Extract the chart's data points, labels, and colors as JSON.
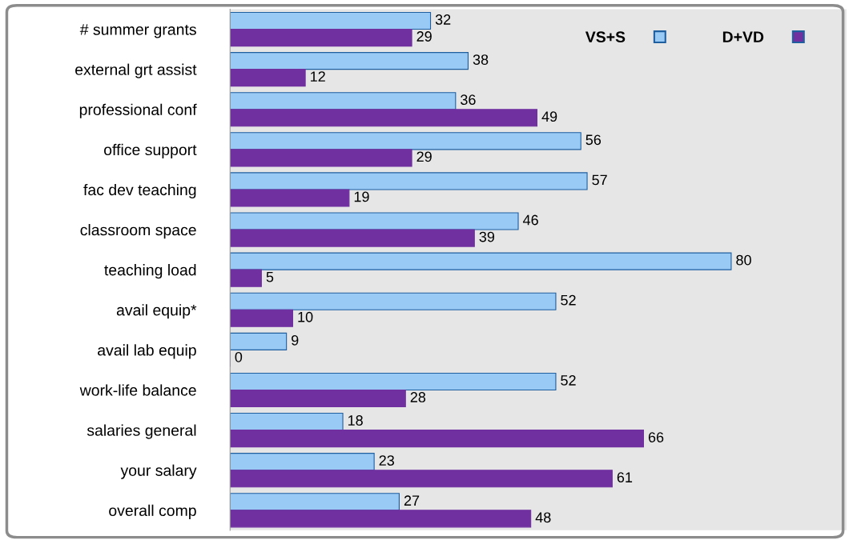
{
  "chart_data": {
    "type": "bar",
    "orientation": "horizontal",
    "data_labels": true,
    "legend": "top right",
    "grid": false,
    "categories": [
      "# summer grants",
      "external grt assist",
      "professional conf",
      "office support",
      "fac dev teaching",
      "classroom space",
      "teaching load",
      "avail equip*",
      "avail lab equip",
      "work-life balance",
      "salaries general",
      "your salary",
      "overall comp"
    ],
    "series": [
      {
        "name": "VS+S",
        "color": "#99c9f5",
        "values": [
          32,
          38,
          36,
          56,
          57,
          46,
          80,
          52,
          9,
          52,
          18,
          23,
          27
        ]
      },
      {
        "name": "D+VD",
        "color": "#7030a0",
        "values": [
          29,
          12,
          49,
          29,
          19,
          39,
          5,
          10,
          0,
          28,
          66,
          61,
          48
        ]
      }
    ]
  }
}
